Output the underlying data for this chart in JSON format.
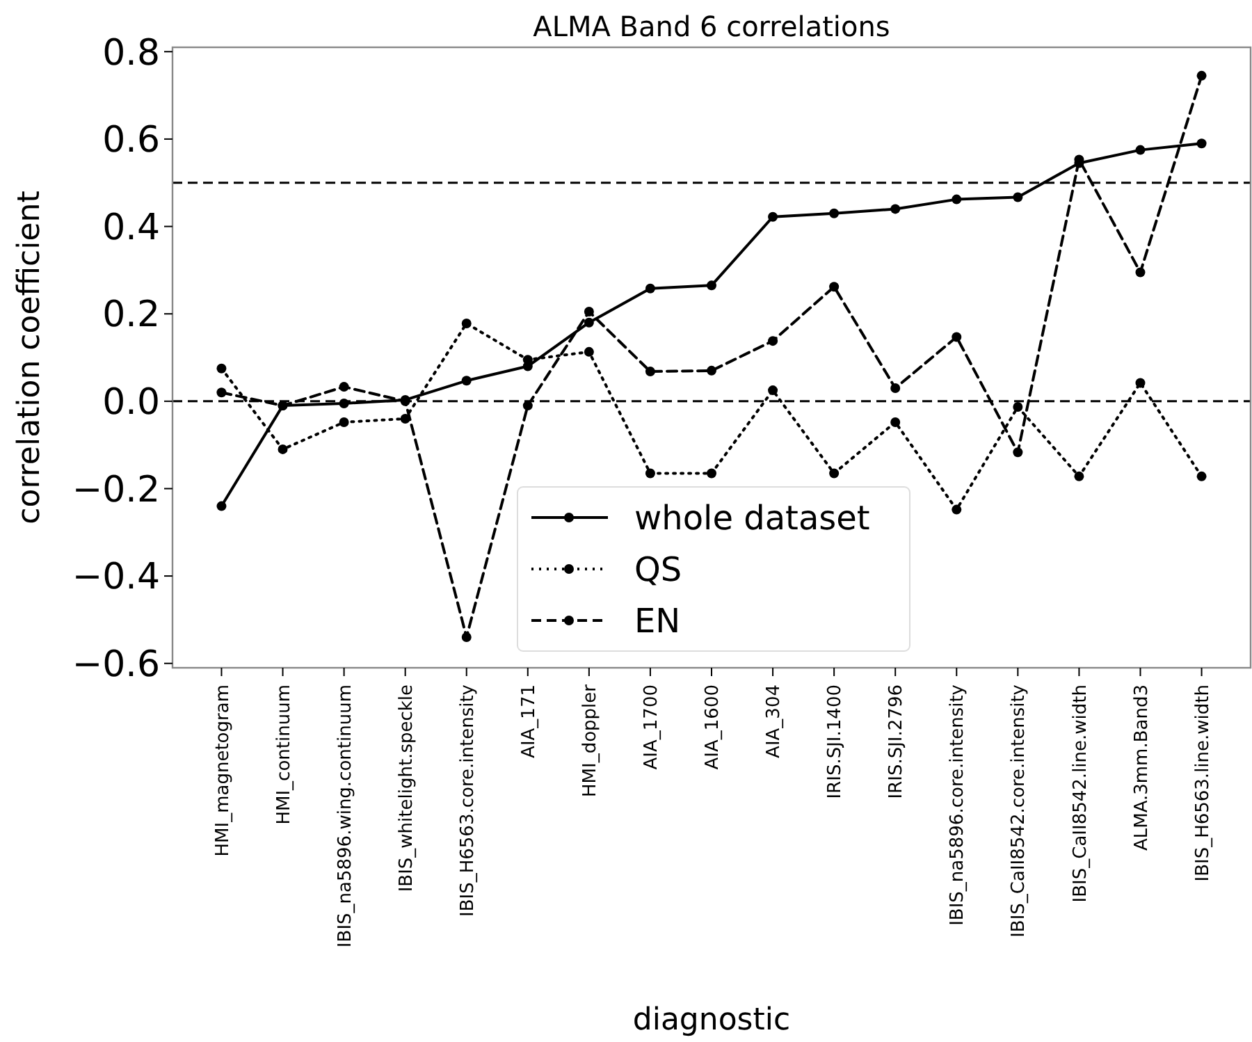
{
  "chart_data": {
    "type": "line",
    "title": "ALMA Band 6 correlations",
    "xlabel": "diagnostic",
    "ylabel": "correlation coefficient",
    "categories": [
      "HMI_magnetogram",
      "HMI_continuum",
      "IBIS_na5896.wing.continuum",
      "IBIS_whitelight.speckle",
      "IBIS_H6563.core.intensity",
      "AIA_171",
      "HMI_doppler",
      "AIA_1700",
      "AIA_1600",
      "AIA_304",
      "IRIS.SJI.1400",
      "IRIS.SJI.2796",
      "IBIS_na5896.core.intensity",
      "IBIS_CaII8542.core.intensity",
      "IBIS_CaII8542.line.width",
      "ALMA.3mm.Band3",
      "IBIS_H6563.line.width"
    ],
    "series": [
      {
        "name": "whole dataset",
        "color": "#000000",
        "line_style": "solid",
        "values": [
          -0.24,
          -0.01,
          -0.005,
          0.003,
          0.047,
          0.08,
          0.18,
          0.258,
          0.265,
          0.422,
          0.43,
          0.44,
          0.462,
          0.467,
          0.545,
          0.575,
          0.59
        ]
      },
      {
        "name": "QS",
        "color": "#000000",
        "line_style": "dotted",
        "values": [
          0.075,
          -0.11,
          -0.048,
          -0.04,
          0.178,
          0.095,
          0.113,
          -0.165,
          -0.165,
          0.025,
          -0.165,
          -0.048,
          -0.248,
          -0.013,
          -0.172,
          0.042,
          -0.172
        ]
      },
      {
        "name": "EN",
        "color": "#000000",
        "line_style": "dashed",
        "values": [
          0.02,
          -0.01,
          0.033,
          0.0,
          -0.54,
          -0.01,
          0.205,
          0.068,
          0.07,
          0.138,
          0.262,
          0.03,
          0.147,
          -0.117,
          0.553,
          0.295,
          0.745
        ]
      }
    ],
    "ylim": [
      -0.61,
      0.81
    ],
    "yticks": [
      {
        "value": -0.6,
        "label": "−0.6"
      },
      {
        "value": -0.4,
        "label": "−0.4"
      },
      {
        "value": -0.2,
        "label": "−0.2"
      },
      {
        "value": 0,
        "label": "0.0"
      },
      {
        "value": 0.2,
        "label": "0.2"
      },
      {
        "value": 0.4,
        "label": "0.4"
      },
      {
        "value": 0.6,
        "label": "0.6"
      },
      {
        "value": 0.8,
        "label": "0.8"
      }
    ],
    "ref_lines": [
      {
        "axis": "y",
        "value": 0.5,
        "line_style": "dashed",
        "color": "#000000"
      },
      {
        "axis": "y",
        "value": 0.0,
        "line_style": "dashed",
        "color": "#000000"
      }
    ],
    "marker": "circle",
    "grid": false,
    "legend": "bottom"
  }
}
